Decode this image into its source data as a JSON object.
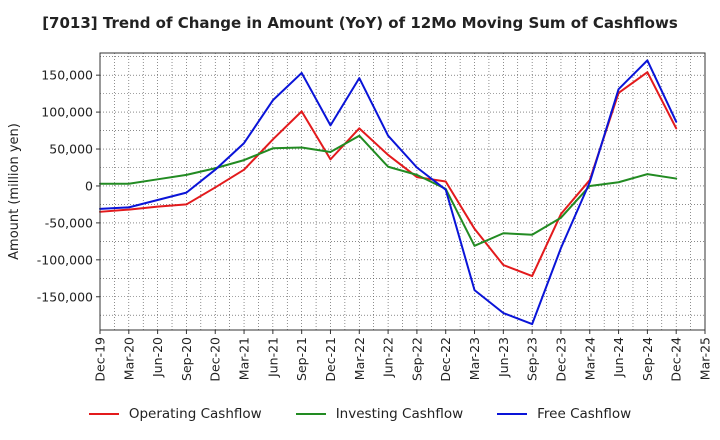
{
  "chart_data": {
    "type": "line",
    "title": "[7013]  Trend of Change in Amount (YoY) of 12Mo Moving Sum of Cashflows",
    "xlabel": "",
    "ylabel": "Amount (million yen)",
    "ylim": [
      -195000,
      180000
    ],
    "yticks": [
      150000,
      100000,
      50000,
      0,
      -50000,
      -100000,
      -150000
    ],
    "ytick_labels": [
      "150,000",
      "100,000",
      "50,000",
      "0",
      "-50,000",
      "-100,000",
      "-150,000"
    ],
    "categories": [
      "Dec-19",
      "Mar-20",
      "Jun-20",
      "Sep-20",
      "Dec-20",
      "Mar-21",
      "Jun-21",
      "Sep-21",
      "Dec-21",
      "Mar-22",
      "Jun-22",
      "Sep-22",
      "Dec-22",
      "Mar-23",
      "Jun-23",
      "Sep-23",
      "Dec-23",
      "Mar-24",
      "Jun-24",
      "Sep-24",
      "Dec-24",
      "Mar-25"
    ],
    "grid": true,
    "legend_position": "bottom",
    "series": [
      {
        "name": "Operating Cashflow",
        "color": "#e31a1c",
        "values": [
          -35000,
          -32000,
          -28000,
          -25000,
          -2000,
          22000,
          63000,
          101000,
          36000,
          78000,
          42000,
          12000,
          6000,
          -58000,
          -107000,
          -122000,
          -38000,
          8000,
          126000,
          154000,
          78000,
          null
        ]
      },
      {
        "name": "Investing Cashflow",
        "color": "#228b22",
        "values": [
          3000,
          3000,
          9000,
          15000,
          24000,
          35000,
          51000,
          52000,
          46000,
          68000,
          26000,
          15000,
          -4000,
          -81000,
          -64000,
          -66000,
          -43000,
          0,
          5000,
          16000,
          10000,
          null
        ]
      },
      {
        "name": "Free Cashflow",
        "color": "#0a14d8",
        "values": [
          -31000,
          -29000,
          -19000,
          -9000,
          22000,
          58000,
          116000,
          153000,
          82000,
          146000,
          68000,
          25000,
          -5000,
          -141000,
          -172000,
          -187000,
          -84000,
          5000,
          131000,
          170000,
          87000,
          null
        ]
      }
    ]
  }
}
